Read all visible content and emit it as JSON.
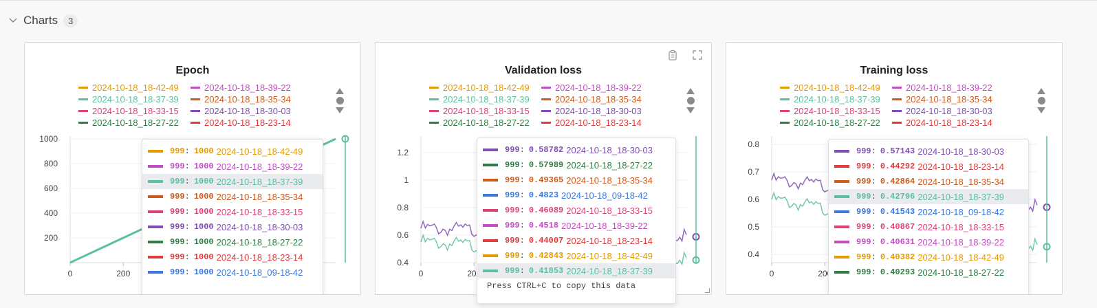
{
  "section": {
    "title": "Charts",
    "count": "3"
  },
  "colors": {
    "r42_49": "#e59a00",
    "r39_22": "#c44cc4",
    "r37_39": "#5bbfa3",
    "r35_34": "#d05a1a",
    "r33_15": "#e0417a",
    "r30_03": "#7f4fb3",
    "r27_22": "#2e7d42",
    "r23_14": "#e03a3a",
    "r09_42": "#3a78e0"
  },
  "legend": [
    {
      "label": "2024-10-18_18-42-49",
      "color": "#e59a00"
    },
    {
      "label": "2024-10-18_18-39-22",
      "color": "#c44cc4"
    },
    {
      "label": "2024-10-18_18-37-39",
      "color": "#5bbfa3"
    },
    {
      "label": "2024-10-18_18-35-34",
      "color": "#d05a1a"
    },
    {
      "label": "2024-10-18_18-33-15",
      "color": "#e0417a"
    },
    {
      "label": "2024-10-18_18-30-03",
      "color": "#7f4fb3"
    },
    {
      "label": "2024-10-18_18-27-22",
      "color": "#2e7d42"
    },
    {
      "label": "2024-10-18_18-23-14",
      "color": "#e03a3a"
    }
  ],
  "panels": [
    {
      "title": "Epoch",
      "yticks": [
        "1000",
        "800",
        "600",
        "400",
        "200"
      ],
      "xticks": [
        "0",
        "200"
      ],
      "tooltip": [
        {
          "step": "999",
          "value": "1000",
          "name": "2024-10-18_18-42-49",
          "color": "#e59a00",
          "hl": false
        },
        {
          "step": "999",
          "value": "1000",
          "name": "2024-10-18_18-39-22",
          "color": "#c44cc4",
          "hl": false
        },
        {
          "step": "999",
          "value": "1000",
          "name": "2024-10-18_18-37-39",
          "color": "#5bbfa3",
          "hl": true
        },
        {
          "step": "999",
          "value": "1000",
          "name": "2024-10-18_18-35-34",
          "color": "#d05a1a",
          "hl": false
        },
        {
          "step": "999",
          "value": "1000",
          "name": "2024-10-18_18-33-15",
          "color": "#e0417a",
          "hl": false
        },
        {
          "step": "999",
          "value": "1000",
          "name": "2024-10-18_18-30-03",
          "color": "#7f4fb3",
          "hl": false
        },
        {
          "step": "999",
          "value": "1000",
          "name": "2024-10-18_18-27-22",
          "color": "#2e7d42",
          "hl": false
        },
        {
          "step": "999",
          "value": "1000",
          "name": "2024-10-18_18-23-14",
          "color": "#e03a3a",
          "hl": false
        },
        {
          "step": "999",
          "value": "1000",
          "name": "2024-10-18_09-18-42",
          "color": "#3a78e0",
          "hl": false
        }
      ],
      "footer": ""
    },
    {
      "title": "Validation loss",
      "yticks": [
        "1.2",
        "1",
        "0.8",
        "0.6",
        "0.4"
      ],
      "xticks": [
        "0",
        "200"
      ],
      "tooltip": [
        {
          "step": "999",
          "value": "0.58782",
          "name": "2024-10-18_18-30-03",
          "color": "#7f4fb3",
          "hl": false
        },
        {
          "step": "999",
          "value": "0.57989",
          "name": "2024-10-18_18-27-22",
          "color": "#2e7d42",
          "hl": false
        },
        {
          "step": "999",
          "value": "0.49365",
          "name": "2024-10-18_18-35-34",
          "color": "#d05a1a",
          "hl": false
        },
        {
          "step": "999",
          "value": "0.4823",
          "name": "2024-10-18_09-18-42",
          "color": "#3a78e0",
          "hl": false
        },
        {
          "step": "999",
          "value": "0.46089",
          "name": "2024-10-18_18-33-15",
          "color": "#e0417a",
          "hl": false
        },
        {
          "step": "999",
          "value": "0.4518",
          "name": "2024-10-18_18-39-22",
          "color": "#c44cc4",
          "hl": false
        },
        {
          "step": "999",
          "value": "0.44007",
          "name": "2024-10-18_18-23-14",
          "color": "#e03a3a",
          "hl": false
        },
        {
          "step": "999",
          "value": "0.42843",
          "name": "2024-10-18_18-42-49",
          "color": "#e59a00",
          "hl": false
        },
        {
          "step": "999",
          "value": "0.41853",
          "name": "2024-10-18_18-37-39",
          "color": "#5bbfa3",
          "hl": true
        }
      ],
      "footer": "Press CTRL+C to copy this data"
    },
    {
      "title": "Training loss",
      "yticks": [
        "0.8",
        "0.7",
        "0.6",
        "0.5",
        "0.4"
      ],
      "xticks": [
        "0",
        "200"
      ],
      "tooltip": [
        {
          "step": "999",
          "value": "0.57143",
          "name": "2024-10-18_18-30-03",
          "color": "#7f4fb3",
          "hl": false
        },
        {
          "step": "999",
          "value": "0.44292",
          "name": "2024-10-18_18-23-14",
          "color": "#e03a3a",
          "hl": false
        },
        {
          "step": "999",
          "value": "0.42864",
          "name": "2024-10-18_18-35-34",
          "color": "#d05a1a",
          "hl": false
        },
        {
          "step": "999",
          "value": "0.42796",
          "name": "2024-10-18_18-37-39",
          "color": "#5bbfa3",
          "hl": true
        },
        {
          "step": "999",
          "value": "0.41543",
          "name": "2024-10-18_09-18-42",
          "color": "#3a78e0",
          "hl": false
        },
        {
          "step": "999",
          "value": "0.40867",
          "name": "2024-10-18_18-33-15",
          "color": "#e0417a",
          "hl": false
        },
        {
          "step": "999",
          "value": "0.40631",
          "name": "2024-10-18_18-39-22",
          "color": "#c44cc4",
          "hl": false
        },
        {
          "step": "999",
          "value": "0.40382",
          "name": "2024-10-18_18-42-49",
          "color": "#e59a00",
          "hl": false
        },
        {
          "step": "999",
          "value": "0.40293",
          "name": "2024-10-18_18-27-22",
          "color": "#2e7d42",
          "hl": false
        }
      ],
      "footer": ""
    }
  ],
  "chart_data": [
    {
      "type": "line",
      "title": "Epoch",
      "ylim": [
        0,
        1000
      ],
      "series": [
        {
          "name": "2024-10-18_18-37-39",
          "x": [
            0,
            999
          ],
          "values": [
            0,
            1000
          ]
        }
      ]
    },
    {
      "type": "line",
      "title": "Validation loss",
      "ylim": [
        0.4,
        1.3
      ],
      "series": [
        {
          "name": "2024-10-18_18-30-03",
          "x": [
            0,
            999
          ],
          "values": [
            0.65,
            0.58782
          ]
        },
        {
          "name": "2024-10-18_18-37-39",
          "x": [
            0,
            999
          ],
          "values": [
            0.55,
            0.41853
          ]
        }
      ]
    },
    {
      "type": "line",
      "title": "Training loss",
      "ylim": [
        0.37,
        0.82
      ],
      "series": [
        {
          "name": "2024-10-18_18-30-03",
          "x": [
            0,
            999
          ],
          "values": [
            0.67,
            0.57143
          ]
        },
        {
          "name": "2024-10-18_18-37-39",
          "x": [
            0,
            999
          ],
          "values": [
            0.6,
            0.42796
          ]
        }
      ]
    }
  ]
}
